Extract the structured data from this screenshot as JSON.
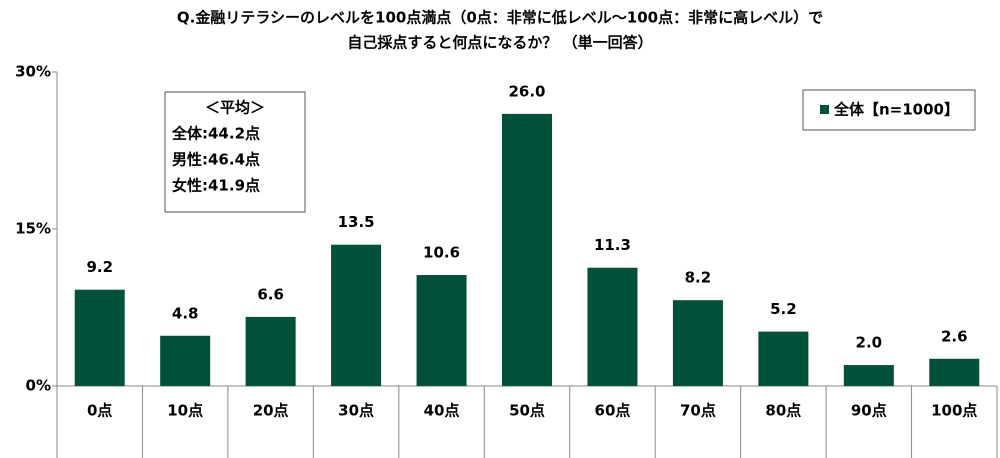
{
  "chart_data": {
    "type": "bar",
    "title": [
      "Q.金融リテラシーのレベルを100点満点（0点：非常に低レベル～100点：非常に高レベル）で",
      "自己採点すると何点になるか？ （単一回答）"
    ],
    "categories": [
      "0点",
      "10点",
      "20点",
      "30点",
      "40点",
      "50点",
      "60点",
      "70点",
      "80点",
      "90点",
      "100点"
    ],
    "series": [
      {
        "name": "全体【n=1000】",
        "color": "#00503a",
        "values": [
          9.2,
          4.8,
          6.6,
          13.5,
          10.6,
          26.0,
          11.3,
          8.2,
          5.2,
          2.0,
          2.6
        ],
        "value_labels": [
          "9.2",
          "4.8",
          "6.6",
          "13.5",
          "10.6",
          "26.0",
          "11.3",
          "8.2",
          "5.2",
          "2.0",
          "2.6"
        ]
      }
    ],
    "ylim": [
      0,
      30
    ],
    "yticks": [
      {
        "value": 0,
        "label": "0%"
      },
      {
        "value": 15,
        "label": "15%"
      },
      {
        "value": 30,
        "label": "30%"
      }
    ],
    "legend": "top-right",
    "annotation": [
      "＜平均＞",
      "全体:44.2点",
      "男性:46.4点",
      "女性:41.9点"
    ]
  }
}
